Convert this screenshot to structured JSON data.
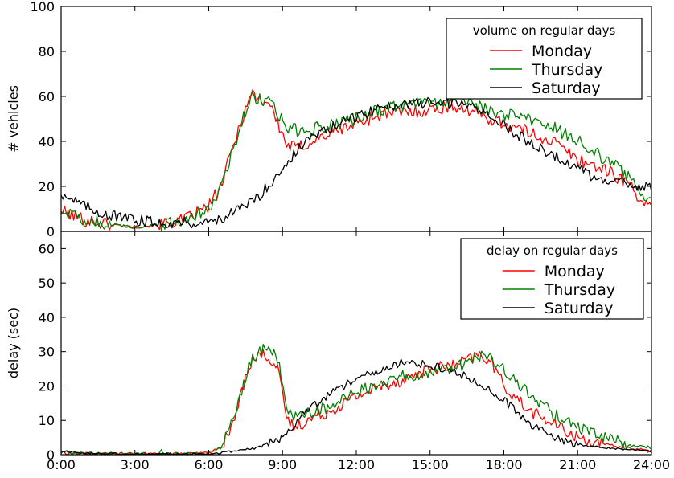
{
  "chart_data": [
    {
      "type": "line",
      "panel": "top",
      "ylabel": "# vehicles",
      "ylim": [
        0,
        100
      ],
      "yticks": [
        0,
        20,
        40,
        60,
        80,
        100
      ],
      "xlim": [
        0,
        24
      ],
      "grid": false,
      "legend": {
        "title": "volume on regular days",
        "position": "top-right",
        "labels": [
          "Monday",
          "Thursday",
          "Saturday"
        ]
      },
      "colors": {
        "Monday": "#ff0000",
        "Thursday": "#008000",
        "Saturday": "#000000"
      },
      "noise": {
        "Monday": 3,
        "Thursday": 3,
        "Saturday": 2.5
      },
      "series": [
        {
          "name": "Monday",
          "x": [
            0,
            1,
            2,
            3,
            4,
            5,
            6,
            6.5,
            7,
            7.5,
            7.8,
            8,
            8.5,
            8.8,
            9.2,
            9.6,
            10,
            11,
            12,
            13,
            14,
            15,
            16,
            17,
            18,
            19,
            20,
            21,
            22,
            23,
            24
          ],
          "values": [
            9,
            5,
            3,
            2,
            3,
            5,
            11,
            20,
            38,
            55,
            62,
            59,
            57,
            48,
            38,
            37,
            39,
            44,
            48,
            52,
            53,
            54,
            56,
            52,
            48,
            44,
            40,
            32,
            28,
            22,
            9
          ]
        },
        {
          "name": "Thursday",
          "x": [
            0,
            1,
            2,
            3,
            4,
            5,
            6,
            6.5,
            7,
            7.5,
            7.8,
            8,
            8.5,
            8.8,
            9.2,
            9.6,
            10,
            11,
            12,
            13,
            14,
            15,
            16,
            17,
            18,
            19,
            20,
            21,
            22,
            23,
            24
          ],
          "values": [
            10,
            5,
            3,
            2,
            3,
            5,
            10,
            20,
            37,
            54,
            61,
            59,
            57,
            52,
            46,
            45,
            45,
            47,
            50,
            54,
            56,
            57,
            58,
            55,
            52,
            50,
            46,
            41,
            33,
            25,
            12
          ]
        },
        {
          "name": "Saturday",
          "x": [
            0,
            1,
            2,
            3,
            4,
            5,
            6,
            7,
            8,
            9,
            10,
            11,
            12,
            13,
            14,
            15,
            16,
            17,
            18,
            19,
            20,
            21,
            22,
            23,
            24
          ],
          "values": [
            17,
            11,
            7,
            5,
            4,
            4,
            4,
            8,
            15,
            28,
            41,
            46,
            51,
            55,
            57,
            57,
            57,
            55,
            47,
            40,
            34,
            28,
            22,
            21,
            20
          ]
        }
      ]
    },
    {
      "type": "line",
      "panel": "bottom",
      "ylabel": "delay (sec)",
      "xlabel": "",
      "ylim": [
        0,
        65
      ],
      "yticks": [
        0,
        10,
        20,
        30,
        40,
        50,
        60
      ],
      "xlim": [
        0,
        24
      ],
      "xticks": [
        0,
        3,
        6,
        9,
        12,
        15,
        18,
        21,
        24
      ],
      "xticklabels": [
        "0:00",
        "3:00",
        "6:00",
        "9:00",
        "12:00",
        "15:00",
        "18:00",
        "21:00",
        "24:00"
      ],
      "grid": false,
      "legend": {
        "title": "delay on regular days",
        "position": "top-right",
        "labels": [
          "Monday",
          "Thursday",
          "Saturday"
        ]
      },
      "colors": {
        "Monday": "#ff0000",
        "Thursday": "#008000",
        "Saturday": "#000000"
      },
      "noise": {
        "Monday": 1.8,
        "Thursday": 1.8,
        "Saturday": 1.2
      },
      "series": [
        {
          "name": "Monday",
          "x": [
            0,
            1,
            2,
            3,
            4,
            5,
            6,
            6.5,
            7,
            7.3,
            7.6,
            8,
            8.4,
            8.8,
            9,
            9.2,
            9.5,
            10,
            11,
            12,
            13,
            14,
            15,
            16,
            17,
            17.5,
            18,
            19,
            20,
            21,
            22,
            23,
            24
          ],
          "values": [
            0.5,
            0.3,
            0.2,
            0.2,
            0.2,
            0.2,
            0.5,
            2,
            9,
            17,
            26,
            29,
            29,
            25,
            17,
            10,
            8,
            10,
            13,
            17,
            20,
            22,
            25,
            26,
            29,
            27,
            20,
            13,
            9,
            5,
            3,
            2,
            1
          ]
        },
        {
          "name": "Thursday",
          "x": [
            0,
            1,
            2,
            3,
            4,
            4.05,
            4.1,
            5,
            6,
            6.5,
            7,
            7.3,
            7.6,
            8,
            8.4,
            8.8,
            9,
            9.2,
            9.5,
            10,
            11,
            12,
            13,
            14,
            15,
            16,
            17,
            17.5,
            18,
            19,
            20,
            21,
            22,
            23,
            24
          ],
          "values": [
            0.7,
            0.4,
            0.3,
            0.2,
            0.2,
            2.5,
            0.3,
            0.2,
            0.5,
            2,
            10,
            17,
            26,
            30,
            31,
            28,
            20,
            13,
            11,
            12,
            14,
            18,
            21,
            23,
            24,
            25,
            29,
            28,
            25,
            18,
            12,
            8,
            5,
            3,
            2
          ]
        },
        {
          "name": "Saturday",
          "x": [
            0,
            1,
            2,
            3,
            4,
            5,
            6,
            7,
            8,
            9,
            10,
            11,
            12,
            13,
            14,
            15,
            16,
            17,
            18,
            19,
            20,
            21,
            22,
            23,
            24
          ],
          "values": [
            1,
            0.5,
            0.3,
            0.2,
            0.2,
            0.2,
            0.2,
            1,
            2,
            5,
            13,
            18,
            22,
            25,
            27,
            26,
            24,
            21,
            16,
            9,
            5,
            3,
            2,
            1.5,
            1
          ]
        }
      ]
    }
  ]
}
